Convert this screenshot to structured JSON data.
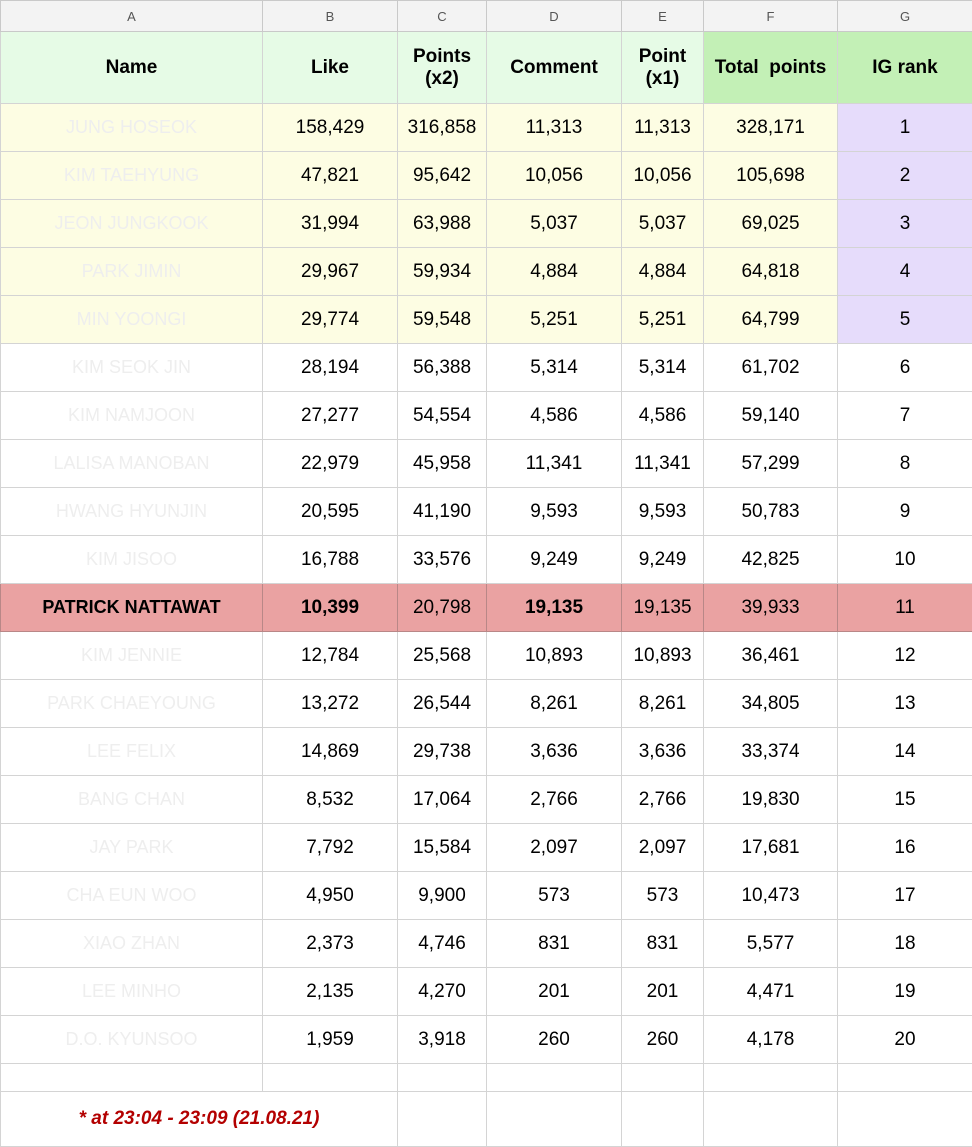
{
  "columns": [
    "A",
    "B",
    "C",
    "D",
    "E",
    "F",
    "G"
  ],
  "headers": {
    "name": "Name",
    "like": "Like",
    "points_x2": "Points (x2)",
    "comment": "Comment",
    "point_x1": "Point (x1)",
    "total": "Total  points",
    "rank": "IG rank"
  },
  "rows": [
    {
      "name": "JUNG HOSEOK",
      "like": "158,429",
      "points": "316,858",
      "comment": "11,313",
      "point": "11,313",
      "total": "328,171",
      "rank": "1"
    },
    {
      "name": "KIM TAEHYUNG",
      "like": "47,821",
      "points": "95,642",
      "comment": "10,056",
      "point": "10,056",
      "total": "105,698",
      "rank": "2"
    },
    {
      "name": "JEON JUNGKOOK",
      "like": "31,994",
      "points": "63,988",
      "comment": "5,037",
      "point": "5,037",
      "total": "69,025",
      "rank": "3"
    },
    {
      "name": "PARK JIMIN",
      "like": "29,967",
      "points": "59,934",
      "comment": "4,884",
      "point": "4,884",
      "total": "64,818",
      "rank": "4"
    },
    {
      "name": "MIN YOONGI",
      "like": "29,774",
      "points": "59,548",
      "comment": "5,251",
      "point": "5,251",
      "total": "64,799",
      "rank": "5"
    },
    {
      "name": "KIM SEOK JIN",
      "like": "28,194",
      "points": "56,388",
      "comment": "5,314",
      "point": "5,314",
      "total": "61,702",
      "rank": "6"
    },
    {
      "name": "KIM NAMJOON",
      "like": "27,277",
      "points": "54,554",
      "comment": "4,586",
      "point": "4,586",
      "total": "59,140",
      "rank": "7"
    },
    {
      "name": "LALISA MANOBAN",
      "like": "22,979",
      "points": "45,958",
      "comment": "11,341",
      "point": "11,341",
      "total": "57,299",
      "rank": "8"
    },
    {
      "name": "HWANG HYUNJIN",
      "like": "20,595",
      "points": "41,190",
      "comment": "9,593",
      "point": "9,593",
      "total": "50,783",
      "rank": "9"
    },
    {
      "name": "KIM JISOO",
      "like": "16,788",
      "points": "33,576",
      "comment": "9,249",
      "point": "9,249",
      "total": "42,825",
      "rank": "10"
    },
    {
      "name": "PATRICK NATTAWAT",
      "like": "10,399",
      "points": "20,798",
      "comment": "19,135",
      "point": "19,135",
      "total": "39,933",
      "rank": "11"
    },
    {
      "name": "KIM JENNIE",
      "like": "12,784",
      "points": "25,568",
      "comment": "10,893",
      "point": "10,893",
      "total": "36,461",
      "rank": "12"
    },
    {
      "name": "PARK CHAEYOUNG",
      "like": "13,272",
      "points": "26,544",
      "comment": "8,261",
      "point": "8,261",
      "total": "34,805",
      "rank": "13"
    },
    {
      "name": "LEE FELIX",
      "like": "14,869",
      "points": "29,738",
      "comment": "3,636",
      "point": "3,636",
      "total": "33,374",
      "rank": "14"
    },
    {
      "name": "BANG CHAN",
      "like": "8,532",
      "points": "17,064",
      "comment": "2,766",
      "point": "2,766",
      "total": "19,830",
      "rank": "15"
    },
    {
      "name": "JAY PARK",
      "like": "7,792",
      "points": "15,584",
      "comment": "2,097",
      "point": "2,097",
      "total": "17,681",
      "rank": "16"
    },
    {
      "name": "CHA EUN WOO",
      "like": "4,950",
      "points": "9,900",
      "comment": "573",
      "point": "573",
      "total": "10,473",
      "rank": "17"
    },
    {
      "name": "XIAO ZHAN",
      "like": "2,373",
      "points": "4,746",
      "comment": "831",
      "point": "831",
      "total": "5,577",
      "rank": "18"
    },
    {
      "name": "LEE MINHO",
      "like": "2,135",
      "points": "4,270",
      "comment": "201",
      "point": "201",
      "total": "4,471",
      "rank": "19"
    },
    {
      "name": "D.O. KYUNSOO",
      "like": "1,959",
      "points": "3,918",
      "comment": "260",
      "point": "260",
      "total": "4,178",
      "rank": "20"
    }
  ],
  "note": "* at 23:04 - 23:09  (21.08.21)",
  "colors": {
    "header_bg": "#e6fbe6",
    "header_total_bg": "#c3f0b6",
    "top5_bg": "#fdfde3",
    "top5_rank_bg": "#e6dcfb",
    "highlight_bg": "#eaa2a2",
    "note_color": "#b30000"
  }
}
